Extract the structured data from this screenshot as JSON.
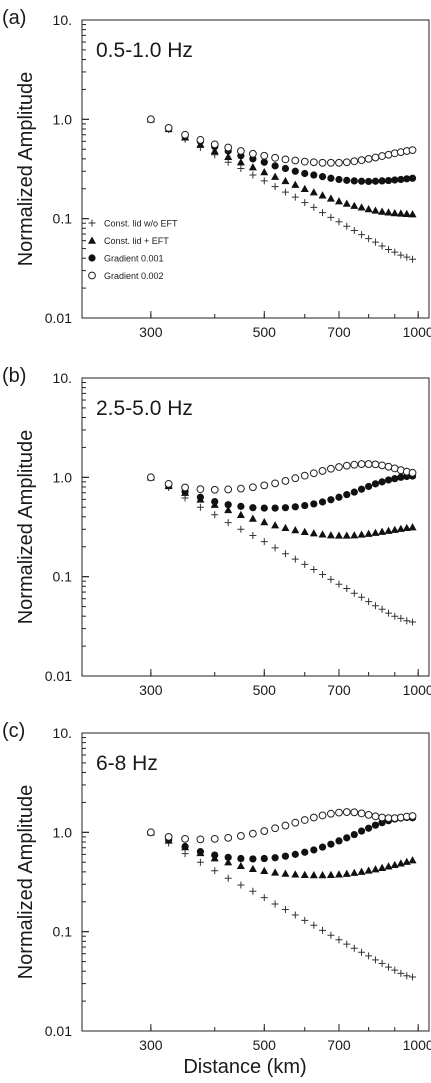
{
  "figure": {
    "xlabel": "Distance  (km)",
    "ylabel": "Normalized Amplitude"
  },
  "chart_data": [
    {
      "type": "scatter",
      "panel_letter": "(a)",
      "title": "0.5-1.0 Hz",
      "xlabel": "Distance  (km)",
      "ylabel": "Normalized Amplitude",
      "xscale": "log",
      "yscale": "log",
      "xlim": [
        220,
        1050
      ],
      "ylim": [
        0.01,
        10
      ],
      "xticks": [
        300,
        500,
        700,
        1000
      ],
      "xtick_labels": [
        "300",
        "500",
        "700",
        "1000"
      ],
      "yticks": [
        0.01,
        0.1,
        1,
        10
      ],
      "ytick_labels": [
        "0.01",
        "0.1",
        "1.0",
        "10."
      ],
      "legend": {
        "position": "left",
        "entries": [
          "Const. lid w/o EFT",
          "Const. lid + EFT",
          "Gradient 0.001",
          "Gradient 0.002"
        ]
      },
      "x": [
        300,
        325,
        350,
        375,
        400,
        425,
        450,
        475,
        500,
        525,
        550,
        575,
        600,
        625,
        650,
        675,
        700,
        725,
        750,
        775,
        800,
        825,
        850,
        875,
        900,
        925,
        950,
        975
      ],
      "series": [
        {
          "name": "Const. lid w/o EFT",
          "marker": "plus",
          "values": [
            1.0,
            0.79,
            0.63,
            0.52,
            0.44,
            0.37,
            0.32,
            0.275,
            0.24,
            0.21,
            0.185,
            0.165,
            0.145,
            0.13,
            0.115,
            0.103,
            0.093,
            0.084,
            0.076,
            0.069,
            0.063,
            0.058,
            0.053,
            0.049,
            0.046,
            0.043,
            0.041,
            0.039
          ]
        },
        {
          "name": "Const. lid + EFT",
          "marker": "triangle",
          "values": [
            1.0,
            0.8,
            0.66,
            0.56,
            0.48,
            0.42,
            0.37,
            0.33,
            0.295,
            0.265,
            0.24,
            0.22,
            0.2,
            0.185,
            0.172,
            0.16,
            0.15,
            0.142,
            0.135,
            0.13,
            0.125,
            0.121,
            0.118,
            0.116,
            0.114,
            0.113,
            0.112,
            0.111
          ]
        },
        {
          "name": "Gradient 0.001",
          "marker": "filled-circle",
          "values": [
            1.0,
            0.81,
            0.68,
            0.6,
            0.53,
            0.48,
            0.43,
            0.4,
            0.37,
            0.34,
            0.32,
            0.3,
            0.285,
            0.275,
            0.265,
            0.255,
            0.248,
            0.243,
            0.24,
            0.238,
            0.237,
            0.238,
            0.24,
            0.242,
            0.245,
            0.248,
            0.252,
            0.255
          ]
        },
        {
          "name": "Gradient 0.002",
          "marker": "open-circle",
          "values": [
            1.0,
            0.82,
            0.7,
            0.62,
            0.56,
            0.52,
            0.48,
            0.45,
            0.43,
            0.41,
            0.395,
            0.385,
            0.375,
            0.37,
            0.365,
            0.365,
            0.365,
            0.37,
            0.378,
            0.388,
            0.4,
            0.413,
            0.427,
            0.44,
            0.455,
            0.468,
            0.48,
            0.49
          ]
        }
      ]
    },
    {
      "type": "scatter",
      "panel_letter": "(b)",
      "title": "2.5-5.0 Hz",
      "xlabel": "Distance  (km)",
      "ylabel": "Normalized Amplitude",
      "xscale": "log",
      "yscale": "log",
      "xlim": [
        220,
        1050
      ],
      "ylim": [
        0.01,
        10
      ],
      "xticks": [
        300,
        500,
        700,
        1000
      ],
      "xtick_labels": [
        "300",
        "500",
        "700",
        "1000"
      ],
      "yticks": [
        0.01,
        0.1,
        1,
        10
      ],
      "ytick_labels": [
        "0.01",
        "0.1",
        "1.0",
        "10."
      ],
      "x": [
        300,
        325,
        350,
        375,
        400,
        425,
        450,
        475,
        500,
        525,
        550,
        575,
        600,
        625,
        650,
        675,
        700,
        725,
        750,
        775,
        800,
        825,
        850,
        875,
        900,
        925,
        950,
        975
      ],
      "series": [
        {
          "name": "Const. lid w/o EFT",
          "marker": "plus",
          "values": [
            1.0,
            0.79,
            0.62,
            0.5,
            0.42,
            0.35,
            0.3,
            0.26,
            0.225,
            0.195,
            0.17,
            0.15,
            0.133,
            0.118,
            0.105,
            0.094,
            0.084,
            0.076,
            0.068,
            0.062,
            0.056,
            0.051,
            0.047,
            0.043,
            0.04,
            0.038,
            0.036,
            0.035
          ]
        },
        {
          "name": "Const. lid + EFT",
          "marker": "triangle",
          "values": [
            1.0,
            0.82,
            0.7,
            0.6,
            0.53,
            0.47,
            0.42,
            0.385,
            0.355,
            0.33,
            0.31,
            0.295,
            0.283,
            0.274,
            0.267,
            0.262,
            0.26,
            0.26,
            0.262,
            0.266,
            0.271,
            0.277,
            0.284,
            0.29,
            0.297,
            0.304,
            0.31,
            0.315
          ]
        },
        {
          "name": "Gradient 0.001",
          "marker": "filled-circle",
          "values": [
            1.0,
            0.84,
            0.72,
            0.63,
            0.57,
            0.53,
            0.51,
            0.495,
            0.49,
            0.49,
            0.495,
            0.505,
            0.52,
            0.54,
            0.565,
            0.595,
            0.63,
            0.67,
            0.71,
            0.76,
            0.81,
            0.86,
            0.9,
            0.94,
            0.97,
            1.0,
            1.02,
            1.03
          ]
        },
        {
          "name": "Gradient 0.002",
          "marker": "open-circle",
          "values": [
            1.0,
            0.86,
            0.79,
            0.76,
            0.75,
            0.755,
            0.77,
            0.795,
            0.83,
            0.87,
            0.92,
            0.98,
            1.04,
            1.1,
            1.16,
            1.22,
            1.27,
            1.31,
            1.34,
            1.36,
            1.36,
            1.35,
            1.32,
            1.28,
            1.23,
            1.18,
            1.14,
            1.11
          ]
        }
      ]
    },
    {
      "type": "scatter",
      "panel_letter": "(c)",
      "title": "6-8 Hz",
      "xlabel": "Distance  (km)",
      "ylabel": "Normalized Amplitude",
      "xscale": "log",
      "yscale": "log",
      "xlim": [
        220,
        1050
      ],
      "ylim": [
        0.01,
        10
      ],
      "xticks": [
        300,
        500,
        700,
        1000
      ],
      "xtick_labels": [
        "300",
        "500",
        "700",
        "1000"
      ],
      "yticks": [
        0.01,
        0.1,
        1,
        10
      ],
      "ytick_labels": [
        "0.01",
        "0.1",
        "1.0",
        "10."
      ],
      "x": [
        300,
        325,
        350,
        375,
        400,
        425,
        450,
        475,
        500,
        525,
        550,
        575,
        600,
        625,
        650,
        675,
        700,
        725,
        750,
        775,
        800,
        825,
        850,
        875,
        900,
        925,
        950,
        975
      ],
      "series": [
        {
          "name": "Const. lid w/o EFT",
          "marker": "plus",
          "values": [
            1.0,
            0.78,
            0.61,
            0.5,
            0.41,
            0.345,
            0.295,
            0.255,
            0.22,
            0.19,
            0.167,
            0.147,
            0.13,
            0.116,
            0.103,
            0.092,
            0.083,
            0.075,
            0.068,
            0.062,
            0.057,
            0.052,
            0.048,
            0.044,
            0.041,
            0.038,
            0.036,
            0.035
          ]
        },
        {
          "name": "Const. lid + EFT",
          "marker": "triangle",
          "values": [
            1.0,
            0.83,
            0.71,
            0.62,
            0.55,
            0.5,
            0.46,
            0.43,
            0.41,
            0.395,
            0.385,
            0.378,
            0.374,
            0.372,
            0.372,
            0.374,
            0.378,
            0.384,
            0.392,
            0.402,
            0.413,
            0.426,
            0.44,
            0.455,
            0.471,
            0.488,
            0.506,
            0.525
          ]
        },
        {
          "name": "Gradient 0.001",
          "marker": "filled-circle",
          "values": [
            1.0,
            0.84,
            0.72,
            0.64,
            0.59,
            0.56,
            0.545,
            0.54,
            0.545,
            0.555,
            0.575,
            0.6,
            0.63,
            0.665,
            0.71,
            0.76,
            0.82,
            0.88,
            0.95,
            1.03,
            1.1,
            1.18,
            1.25,
            1.31,
            1.36,
            1.39,
            1.41,
            1.4
          ]
        },
        {
          "name": "Gradient 0.002",
          "marker": "open-circle",
          "values": [
            1.0,
            0.9,
            0.86,
            0.85,
            0.86,
            0.88,
            0.92,
            0.97,
            1.03,
            1.1,
            1.17,
            1.25,
            1.33,
            1.41,
            1.48,
            1.54,
            1.58,
            1.6,
            1.59,
            1.55,
            1.5,
            1.45,
            1.41,
            1.39,
            1.39,
            1.41,
            1.44,
            1.46
          ]
        }
      ]
    }
  ]
}
